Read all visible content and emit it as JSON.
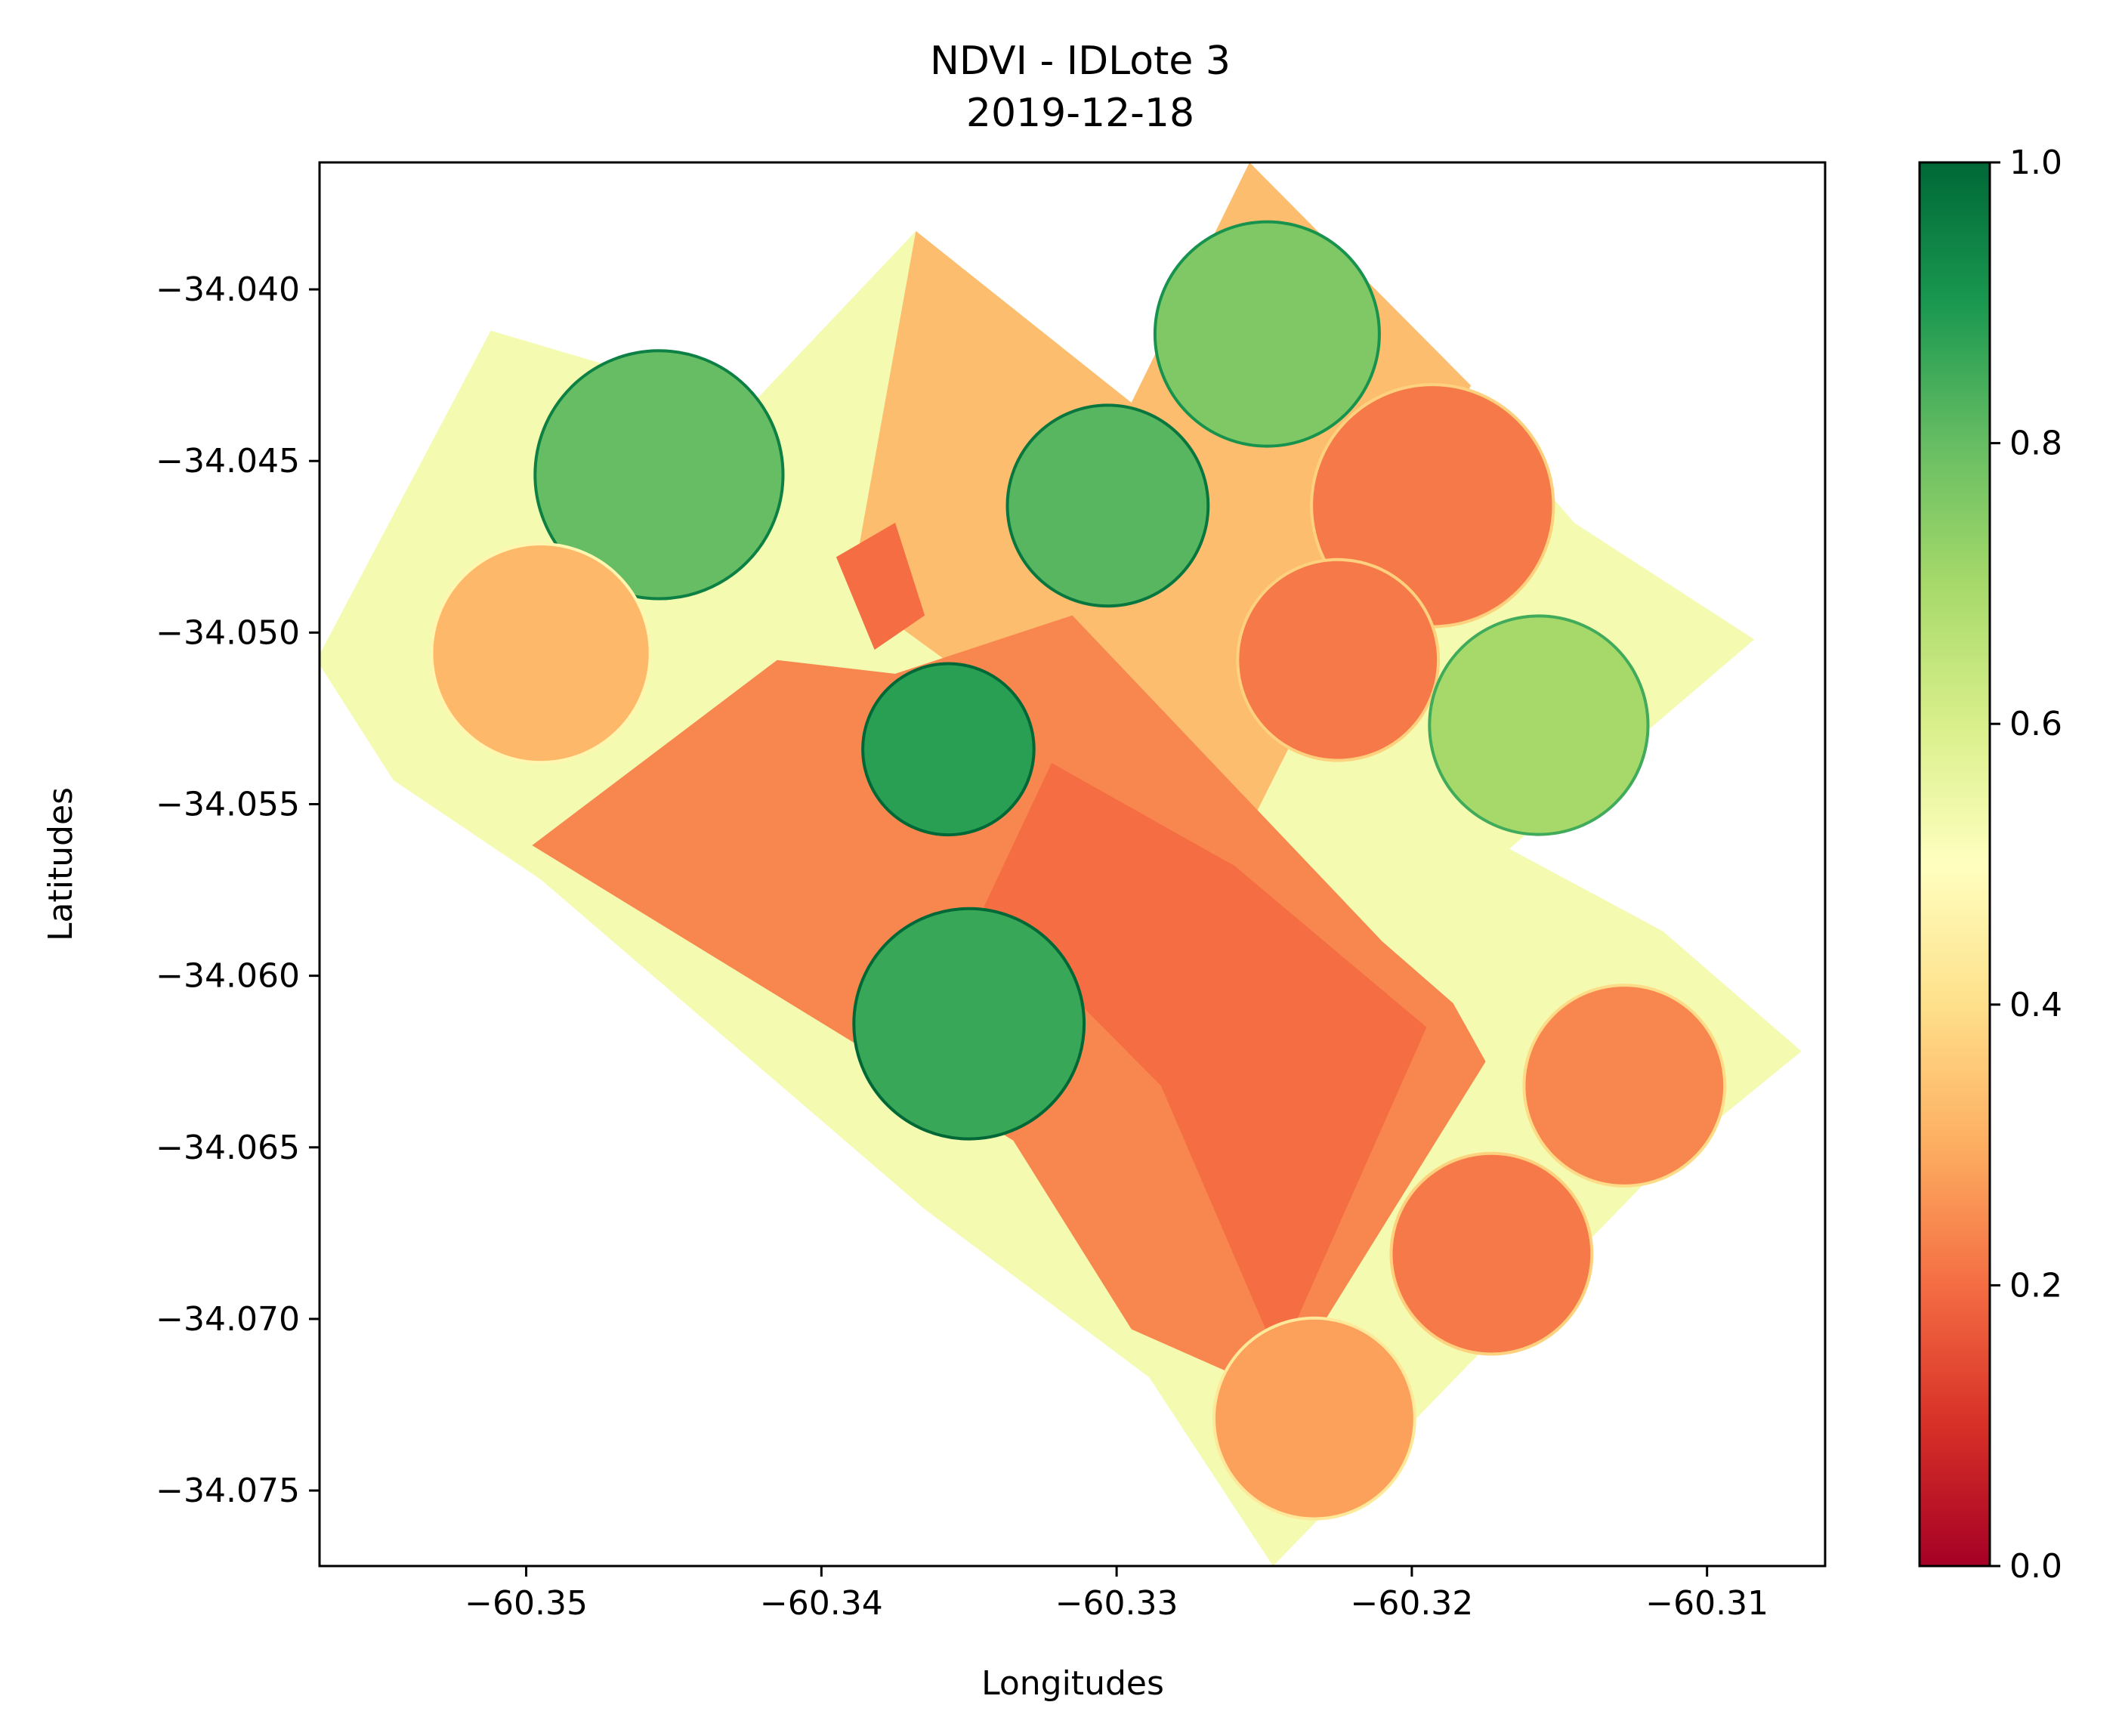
{
  "chart_data": {
    "type": "heatmap",
    "title": "NDVI - IDLote 3",
    "subtitle": "2019-12-18",
    "xlabel": "Longitudes",
    "ylabel": "Latitudes",
    "xlim": [
      -60.357,
      -60.306
    ],
    "ylim": [
      -34.0772,
      -34.0363
    ],
    "xticks": [
      -60.35,
      -60.34,
      -60.33,
      -60.32,
      -60.31
    ],
    "xtick_labels": [
      "−60.35",
      "−60.34",
      "−60.33",
      "−60.32",
      "−60.31"
    ],
    "yticks": [
      -34.04,
      -34.045,
      -34.05,
      -34.055,
      -34.06,
      -34.065,
      -34.07,
      -34.075
    ],
    "ytick_labels": [
      "−34.040",
      "−34.045",
      "−34.050",
      "−34.055",
      "−34.060",
      "−34.065",
      "−34.070",
      "−34.075"
    ],
    "colormap": "RdYlGn",
    "colorbar": {
      "min": 0.0,
      "max": 1.0,
      "ticks": [
        0.0,
        0.2,
        0.4,
        0.6,
        0.8,
        1.0
      ],
      "tick_labels": [
        "0.0",
        "0.2",
        "0.4",
        "0.6",
        "0.8",
        "1.0"
      ],
      "stops": [
        "#a50026",
        "#d73027",
        "#f46d43",
        "#fdae61",
        "#fee08b",
        "#ffffbf",
        "#d9ef8b",
        "#a6d96a",
        "#66bd63",
        "#1a9850",
        "#006837"
      ]
    },
    "grid": false,
    "background_ndvi": 0.53,
    "regions": [
      {
        "kind": "polygon",
        "ndvi": 0.33,
        "pts": [
          [
            -60.339,
            -34.0488
          ],
          [
            -60.3368,
            -34.0383
          ],
          [
            -60.3295,
            -34.0433
          ],
          [
            -60.3255,
            -34.0363
          ],
          [
            -60.318,
            -34.0428
          ],
          [
            -60.326,
            -34.0565
          ],
          [
            -60.331,
            -34.0538
          ]
        ]
      },
      {
        "kind": "polygon",
        "ndvi": 0.24,
        "pts": [
          [
            -60.3498,
            -34.0562
          ],
          [
            -60.3415,
            -34.0508
          ],
          [
            -60.3375,
            -34.0512
          ],
          [
            -60.3315,
            -34.0495
          ],
          [
            -60.321,
            -34.059
          ],
          [
            -60.3186,
            -34.0608
          ],
          [
            -60.3175,
            -34.0625
          ],
          [
            -60.3245,
            -34.0722
          ],
          [
            -60.3295,
            -34.0703
          ],
          [
            -60.3335,
            -34.0648
          ]
        ]
      },
      {
        "kind": "polygon",
        "ndvi": 0.2,
        "pts": [
          [
            -60.3322,
            -34.0538
          ],
          [
            -60.326,
            -34.0568
          ],
          [
            -60.3195,
            -34.0615
          ],
          [
            -60.3245,
            -34.0712
          ],
          [
            -60.3285,
            -34.0632
          ],
          [
            -60.3345,
            -34.058
          ]
        ]
      },
      {
        "kind": "polygon",
        "ndvi": 0.2,
        "pts": [
          [
            -60.3395,
            -34.0478
          ],
          [
            -60.3375,
            -34.0468
          ],
          [
            -60.3365,
            -34.0495
          ],
          [
            -60.3382,
            -34.0505
          ]
        ]
      },
      {
        "kind": "circle",
        "ndvi": 0.8,
        "cx": -60.3455,
        "cy": -34.0454,
        "r": 0.0042
      },
      {
        "kind": "circle",
        "ndvi": 0.32,
        "cx": -60.3495,
        "cy": -34.0506,
        "r": 0.0037
      },
      {
        "kind": "circle",
        "ndvi": 0.82,
        "cx": -60.3303,
        "cy": -34.0463,
        "r": 0.0034
      },
      {
        "kind": "circle",
        "ndvi": 0.76,
        "cx": -60.3249,
        "cy": -34.0413,
        "r": 0.0038
      },
      {
        "kind": "circle",
        "ndvi": 0.88,
        "cx": -60.3357,
        "cy": -34.0534,
        "r": 0.0029
      },
      {
        "kind": "circle",
        "ndvi": 0.22,
        "cx": -60.3193,
        "cy": -34.0463,
        "r": 0.0041
      },
      {
        "kind": "circle",
        "ndvi": 0.22,
        "cx": -60.3225,
        "cy": -34.0508,
        "r": 0.0034
      },
      {
        "kind": "circle",
        "ndvi": 0.7,
        "cx": -60.3157,
        "cy": -34.0527,
        "r": 0.0037
      },
      {
        "kind": "circle",
        "ndvi": 0.86,
        "cx": -60.335,
        "cy": -34.0614,
        "r": 0.0039
      },
      {
        "kind": "circle",
        "ndvi": 0.24,
        "cx": -60.3128,
        "cy": -34.0632,
        "r": 0.0034
      },
      {
        "kind": "circle",
        "ndvi": 0.22,
        "cx": -60.3173,
        "cy": -34.0681,
        "r": 0.0034
      },
      {
        "kind": "circle",
        "ndvi": 0.28,
        "cx": -60.3233,
        "cy": -34.0729,
        "r": 0.0034
      }
    ]
  }
}
